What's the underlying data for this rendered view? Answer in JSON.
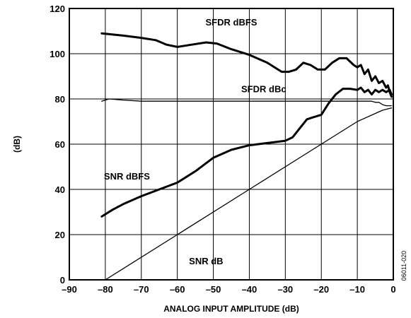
{
  "chart_data": {
    "type": "line",
    "title": "",
    "xlabel": "ANALOG INPUT AMPLITUDE (dB)",
    "ylabel": "(dB)",
    "xlim": [
      -90,
      0
    ],
    "ylim": [
      0,
      120
    ],
    "xticks": [
      -90,
      -80,
      -70,
      -60,
      -50,
      -40,
      -30,
      -20,
      -10,
      0
    ],
    "yticks": [
      0,
      20,
      40,
      60,
      80,
      100,
      120
    ],
    "xtick_labels": [
      "–90",
      "–80",
      "–70",
      "–60",
      "–50",
      "–40",
      "–30",
      "–20",
      "–10",
      "0"
    ],
    "ytick_labels": [
      "0",
      "20",
      "40",
      "60",
      "80",
      "100",
      "120"
    ],
    "grid": true,
    "figure_code": "06011-020",
    "series": [
      {
        "name": "SFDR dBFS",
        "weight": "heavy",
        "label_at": [
          -45,
          114
        ],
        "points": [
          [
            -81,
            109
          ],
          [
            -75,
            108
          ],
          [
            -70,
            107
          ],
          [
            -66,
            106
          ],
          [
            -63,
            104
          ],
          [
            -60,
            103
          ],
          [
            -56,
            104
          ],
          [
            -52,
            105
          ],
          [
            -49,
            104.5
          ],
          [
            -45,
            102
          ],
          [
            -40,
            99.5
          ],
          [
            -35,
            96
          ],
          [
            -31,
            92
          ],
          [
            -29,
            92
          ],
          [
            -27,
            93
          ],
          [
            -25,
            96
          ],
          [
            -23,
            95
          ],
          [
            -21,
            93
          ],
          [
            -19,
            93
          ],
          [
            -17,
            96
          ],
          [
            -15,
            98
          ],
          [
            -13,
            98
          ],
          [
            -11,
            95
          ],
          [
            -10,
            94
          ],
          [
            -9,
            95
          ],
          [
            -8,
            91
          ],
          [
            -7,
            93
          ],
          [
            -6,
            88
          ],
          [
            -5,
            90
          ],
          [
            -4,
            87
          ],
          [
            -3,
            88
          ],
          [
            -2,
            85
          ],
          [
            -1.5,
            86
          ],
          [
            -1,
            83
          ],
          [
            -0.5,
            81
          ]
        ]
      },
      {
        "name": "SFDR dBc",
        "weight": "thin",
        "label_at": [
          -36,
          84.5
        ],
        "points": [
          [
            -81,
            79
          ],
          [
            -79,
            80
          ],
          [
            -75,
            79.5
          ],
          [
            -70,
            79
          ],
          [
            -60,
            79
          ],
          [
            -50,
            79
          ],
          [
            -40,
            79
          ],
          [
            -30,
            79
          ],
          [
            -20,
            79
          ],
          [
            -10,
            79
          ],
          [
            -6,
            79
          ],
          [
            -5,
            78.5
          ],
          [
            -4,
            78.5
          ],
          [
            -3,
            77.5
          ],
          [
            -2,
            77
          ],
          [
            -1,
            77
          ],
          [
            -0.5,
            77
          ]
        ]
      },
      {
        "name": "SNR dBFS",
        "weight": "heavy",
        "label_at": [
          -74,
          46
        ],
        "points": [
          [
            -81,
            28
          ],
          [
            -78,
            31
          ],
          [
            -75,
            33.5
          ],
          [
            -70,
            37
          ],
          [
            -65,
            40
          ],
          [
            -60,
            43
          ],
          [
            -55,
            48
          ],
          [
            -50,
            54
          ],
          [
            -45,
            57.5
          ],
          [
            -40,
            59.5
          ],
          [
            -35,
            60.5
          ],
          [
            -30,
            61.5
          ],
          [
            -28,
            63
          ],
          [
            -26,
            67
          ],
          [
            -24,
            71
          ],
          [
            -22,
            72
          ],
          [
            -20,
            73
          ],
          [
            -18,
            78
          ],
          [
            -16,
            82
          ],
          [
            -14,
            84.5
          ],
          [
            -12,
            84.5
          ],
          [
            -10,
            84
          ],
          [
            -9,
            85
          ],
          [
            -8,
            83
          ],
          [
            -7,
            84
          ],
          [
            -6,
            82
          ],
          [
            -5,
            84
          ],
          [
            -4,
            83
          ],
          [
            -3,
            84
          ],
          [
            -2,
            83
          ],
          [
            -1,
            84
          ],
          [
            -0.5,
            82
          ]
        ]
      },
      {
        "name": "SNR dB",
        "weight": "thin",
        "label_at": [
          -52,
          8.5
        ],
        "points": [
          [
            -80,
            0
          ],
          [
            -60,
            20
          ],
          [
            -40,
            40
          ],
          [
            -20,
            60
          ],
          [
            -10,
            70
          ],
          [
            -3,
            75
          ],
          [
            -0.5,
            76
          ]
        ]
      }
    ]
  }
}
